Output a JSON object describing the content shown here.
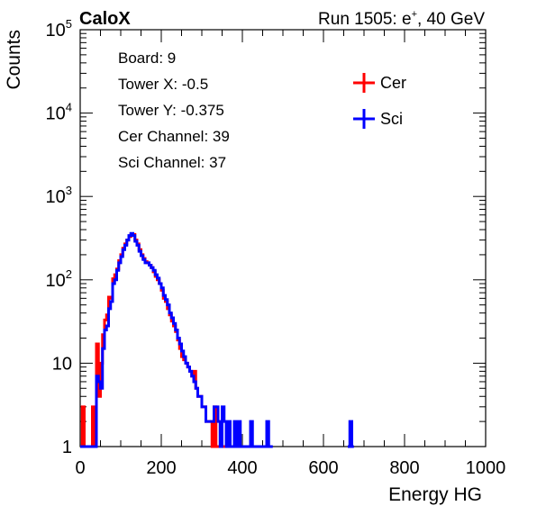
{
  "header": {
    "left_title": "CaloX",
    "right_title_prefix": "Run 1505: e",
    "right_title_sup": "+",
    "right_title_suffix": ", 40 GeV"
  },
  "info_box": {
    "lines": [
      "Board: 9",
      "Tower X: -0.5",
      "Tower Y: -0.375",
      "Cer Channel: 39",
      "Sci Channel: 37"
    ]
  },
  "chart_data": {
    "type": "line",
    "xlabel": "Energy HG",
    "ylabel": "Counts",
    "xlim": [
      0,
      1000
    ],
    "ylim": [
      1,
      100000
    ],
    "y_scale": "log",
    "x_ticks": [
      0,
      200,
      400,
      600,
      800,
      1000
    ],
    "y_ticks": [
      {
        "value": 1,
        "base": "1",
        "exp": ""
      },
      {
        "value": 10,
        "base": "10",
        "exp": ""
      },
      {
        "value": 100,
        "base": "10",
        "exp": "2"
      },
      {
        "value": 1000,
        "base": "10",
        "exp": "3"
      },
      {
        "value": 10000,
        "base": "10",
        "exp": "4"
      },
      {
        "value": 100000,
        "base": "10",
        "exp": "5"
      }
    ],
    "legend_position": "top-right",
    "series": [
      {
        "name": "Cer",
        "color": "#ff0000",
        "x": [
          0,
          5,
          10,
          15,
          20,
          25,
          30,
          35,
          40,
          45,
          50,
          55,
          60,
          65,
          70,
          75,
          80,
          85,
          90,
          95,
          100,
          105,
          110,
          115,
          120,
          125,
          130,
          135,
          140,
          145,
          150,
          155,
          160,
          165,
          170,
          175,
          180,
          185,
          190,
          195,
          200,
          205,
          210,
          215,
          220,
          225,
          230,
          235,
          240,
          245,
          250,
          255,
          260,
          265,
          270,
          275,
          280,
          285,
          290,
          295,
          300,
          305,
          310,
          315,
          320,
          325,
          330,
          335,
          340,
          345,
          350,
          355,
          360,
          365,
          370,
          375,
          380,
          385,
          390,
          395,
          400,
          405,
          410
        ],
        "values": [
          1,
          3,
          1,
          1,
          1,
          1,
          3,
          1,
          17,
          4,
          10,
          22,
          33,
          38,
          62,
          60,
          103,
          115,
          135,
          170,
          200,
          240,
          270,
          300,
          330,
          355,
          350,
          300,
          270,
          230,
          200,
          180,
          165,
          160,
          150,
          140,
          125,
          110,
          100,
          90,
          75,
          60,
          55,
          45,
          38,
          32,
          28,
          24,
          19,
          15,
          12,
          11,
          10,
          9,
          8,
          7,
          8,
          5,
          4,
          4,
          3,
          3,
          2,
          2,
          2,
          1,
          3,
          1,
          1,
          1,
          1,
          1,
          1,
          1,
          1,
          1,
          1,
          1,
          1,
          1,
          1,
          1,
          1
        ]
      },
      {
        "name": "Sci",
        "color": "#0000ff",
        "x": [
          0,
          5,
          10,
          15,
          20,
          25,
          30,
          35,
          40,
          45,
          50,
          55,
          60,
          65,
          70,
          75,
          80,
          85,
          90,
          95,
          100,
          105,
          110,
          115,
          120,
          125,
          130,
          135,
          140,
          145,
          150,
          155,
          160,
          165,
          170,
          175,
          180,
          185,
          190,
          195,
          200,
          205,
          210,
          215,
          220,
          225,
          230,
          235,
          240,
          245,
          250,
          255,
          260,
          265,
          270,
          275,
          280,
          285,
          290,
          295,
          300,
          305,
          310,
          315,
          320,
          325,
          330,
          335,
          340,
          345,
          350,
          355,
          360,
          365,
          370,
          375,
          380,
          385,
          390,
          395,
          400,
          405,
          410,
          415,
          420,
          425,
          430,
          435,
          440,
          445,
          450,
          455,
          460,
          465,
          470,
          660,
          665,
          670
        ],
        "values": [
          1,
          1,
          1,
          1,
          1,
          1,
          1,
          1,
          7,
          6,
          5,
          15,
          25,
          28,
          45,
          55,
          90,
          100,
          130,
          160,
          190,
          230,
          260,
          300,
          340,
          360,
          340,
          290,
          260,
          220,
          195,
          175,
          160,
          160,
          150,
          140,
          130,
          115,
          105,
          90,
          80,
          65,
          58,
          50,
          40,
          35,
          30,
          25,
          20,
          17,
          14,
          12,
          10,
          9,
          8,
          7,
          6,
          5,
          4,
          4,
          3,
          3,
          2,
          2,
          2,
          2,
          3,
          3,
          2,
          1,
          3,
          2,
          1,
          2,
          1,
          1,
          2,
          1,
          2,
          1,
          1,
          1,
          1,
          1,
          2,
          1,
          1,
          1,
          1,
          1,
          1,
          1,
          2,
          1,
          1,
          1,
          2,
          1
        ]
      }
    ]
  }
}
